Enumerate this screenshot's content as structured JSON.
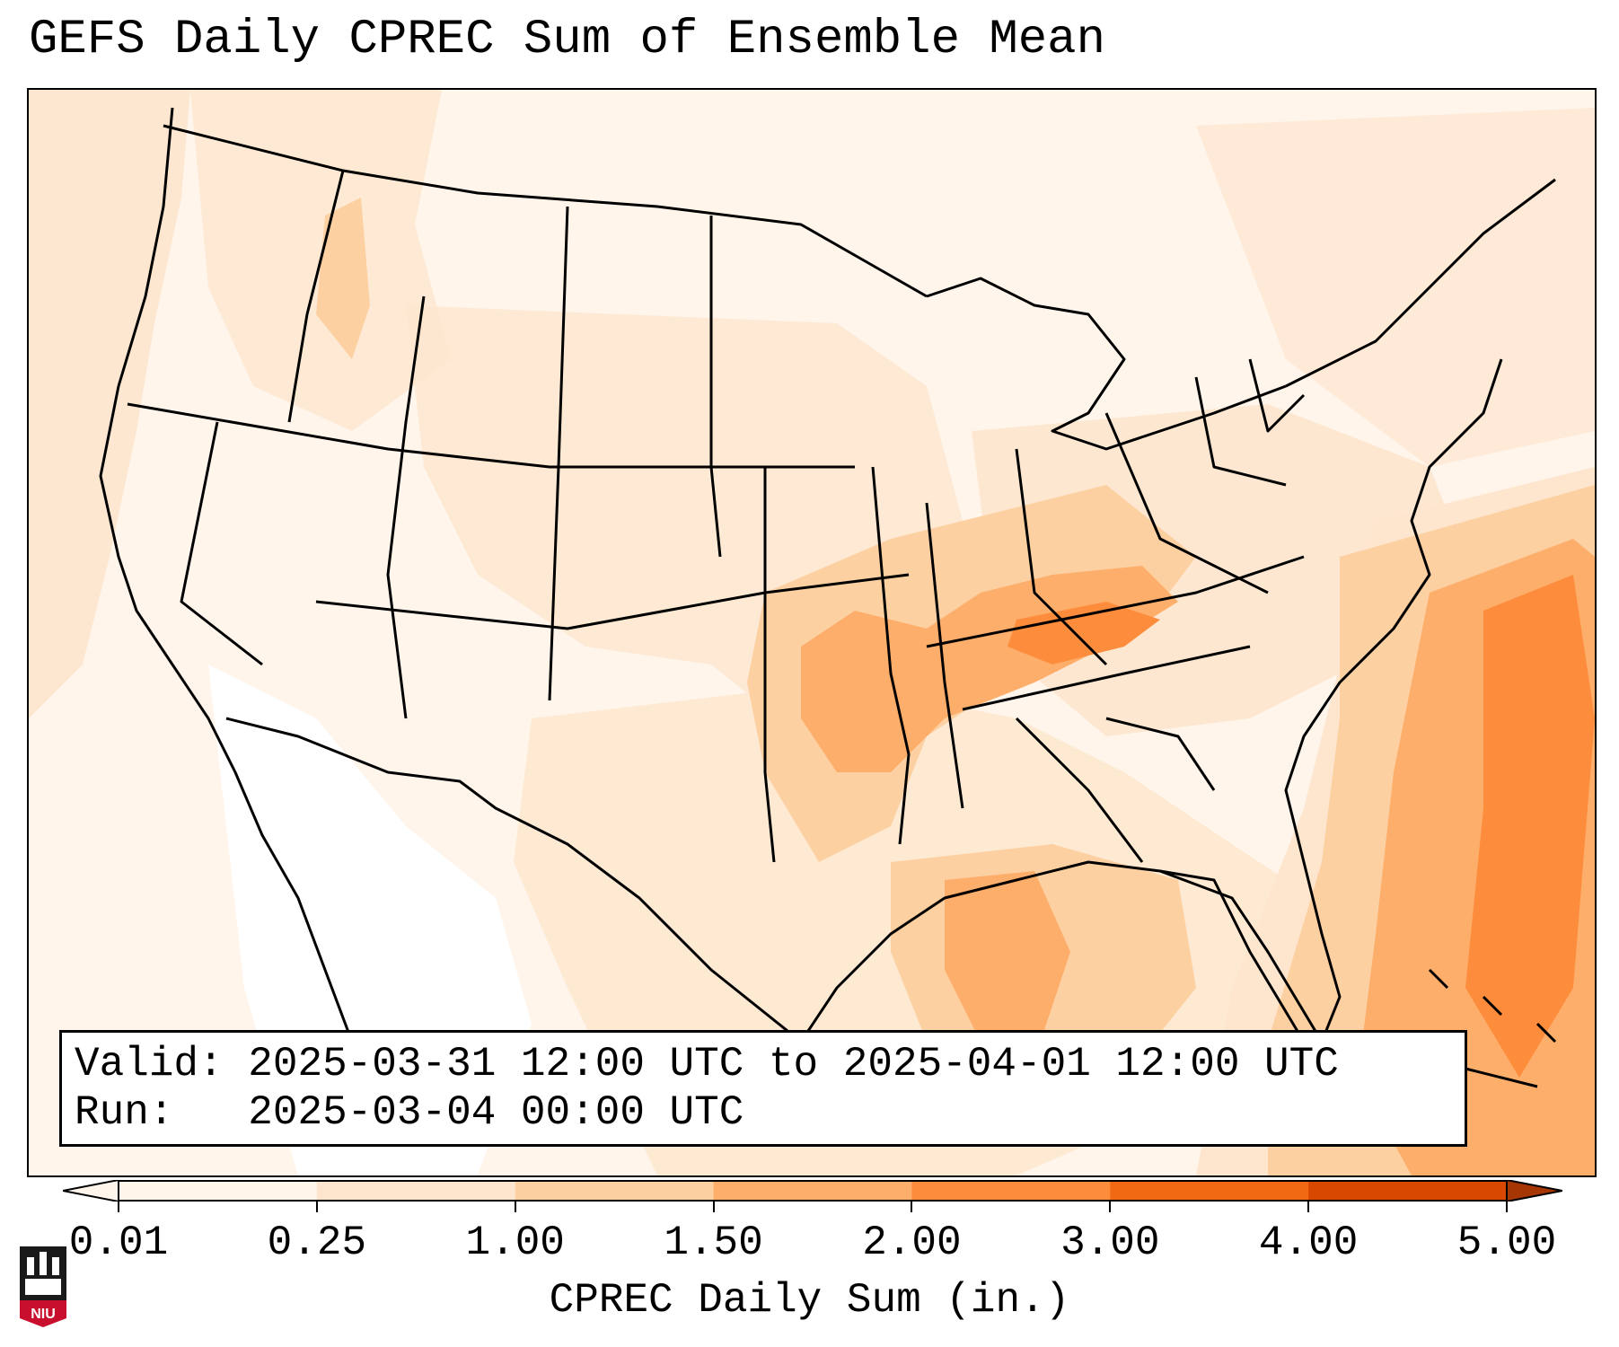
{
  "title": "GEFS Daily CPREC Sum of Ensemble Mean",
  "info": {
    "valid_label": "Valid:",
    "valid_value": "2025-03-31 12:00 UTC to 2025-04-01 12:00 UTC",
    "run_label": "Run:",
    "run_value": "2025-03-04 00:00 UTC"
  },
  "colorbar": {
    "title": "CPREC Daily Sum (in.)",
    "ticks": [
      "0.01",
      "0.25",
      "1.00",
      "1.50",
      "2.00",
      "3.00",
      "4.00",
      "5.00"
    ],
    "colors": [
      "#fff5eb",
      "#fee6ce",
      "#fdd0a2",
      "#fdae6b",
      "#fd8d3c",
      "#f16913",
      "#d94801",
      "#a63603"
    ],
    "extend": "both"
  },
  "logo": {
    "text": "NIU",
    "color": "#c8102e"
  },
  "map": {
    "region": "Contiguous United States",
    "projection": "Lambert Conformal",
    "features": [
      "state-borders",
      "country-borders",
      "coastlines"
    ],
    "max_precip_area": "Tennessee Valley and Western Atlantic",
    "heavy_color": "#f16913"
  }
}
